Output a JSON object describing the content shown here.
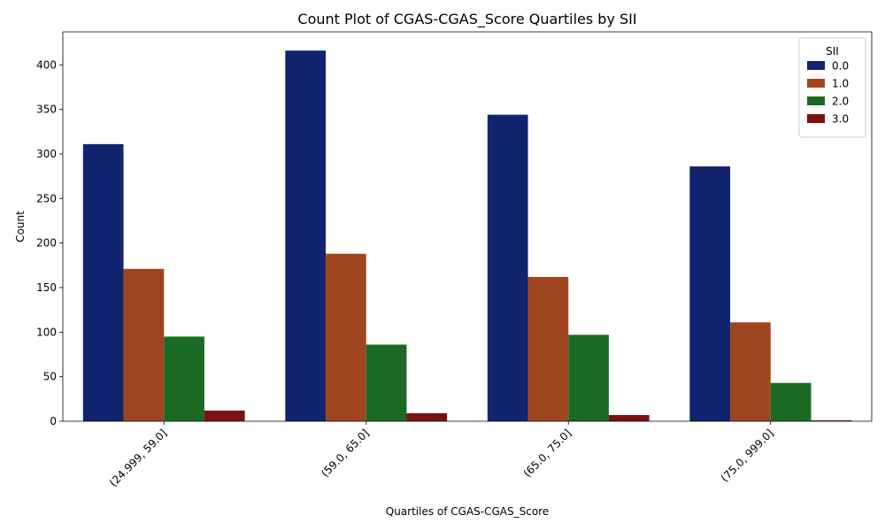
{
  "chart_data": {
    "type": "bar",
    "title": "Count Plot of CGAS-CGAS_Score Quartiles by SII",
    "xlabel": "Quartiles of CGAS-CGAS_Score",
    "ylabel": "Count",
    "categories": [
      "(24.999, 59.0]",
      "(59.0, 65.0]",
      "(65.0, 75.0]",
      "(75.0, 999.0]"
    ],
    "series": [
      {
        "name": "0.0",
        "color": "#12236f",
        "values": [
          311,
          416,
          344,
          286
        ]
      },
      {
        "name": "1.0",
        "color": "#a0461f",
        "values": [
          171,
          188,
          162,
          111
        ]
      },
      {
        "name": "2.0",
        "color": "#1b6a24",
        "values": [
          95,
          86,
          97,
          43
        ]
      },
      {
        "name": "3.0",
        "color": "#7d1111",
        "values": [
          12,
          9,
          7,
          1
        ]
      }
    ],
    "ylim": [
      0,
      437
    ],
    "yticks": [
      0,
      50,
      100,
      150,
      200,
      250,
      300,
      350,
      400
    ],
    "grid": false,
    "legend": {
      "title": "SII",
      "placement": "top-right"
    },
    "xtick_rotation": "45deg"
  }
}
